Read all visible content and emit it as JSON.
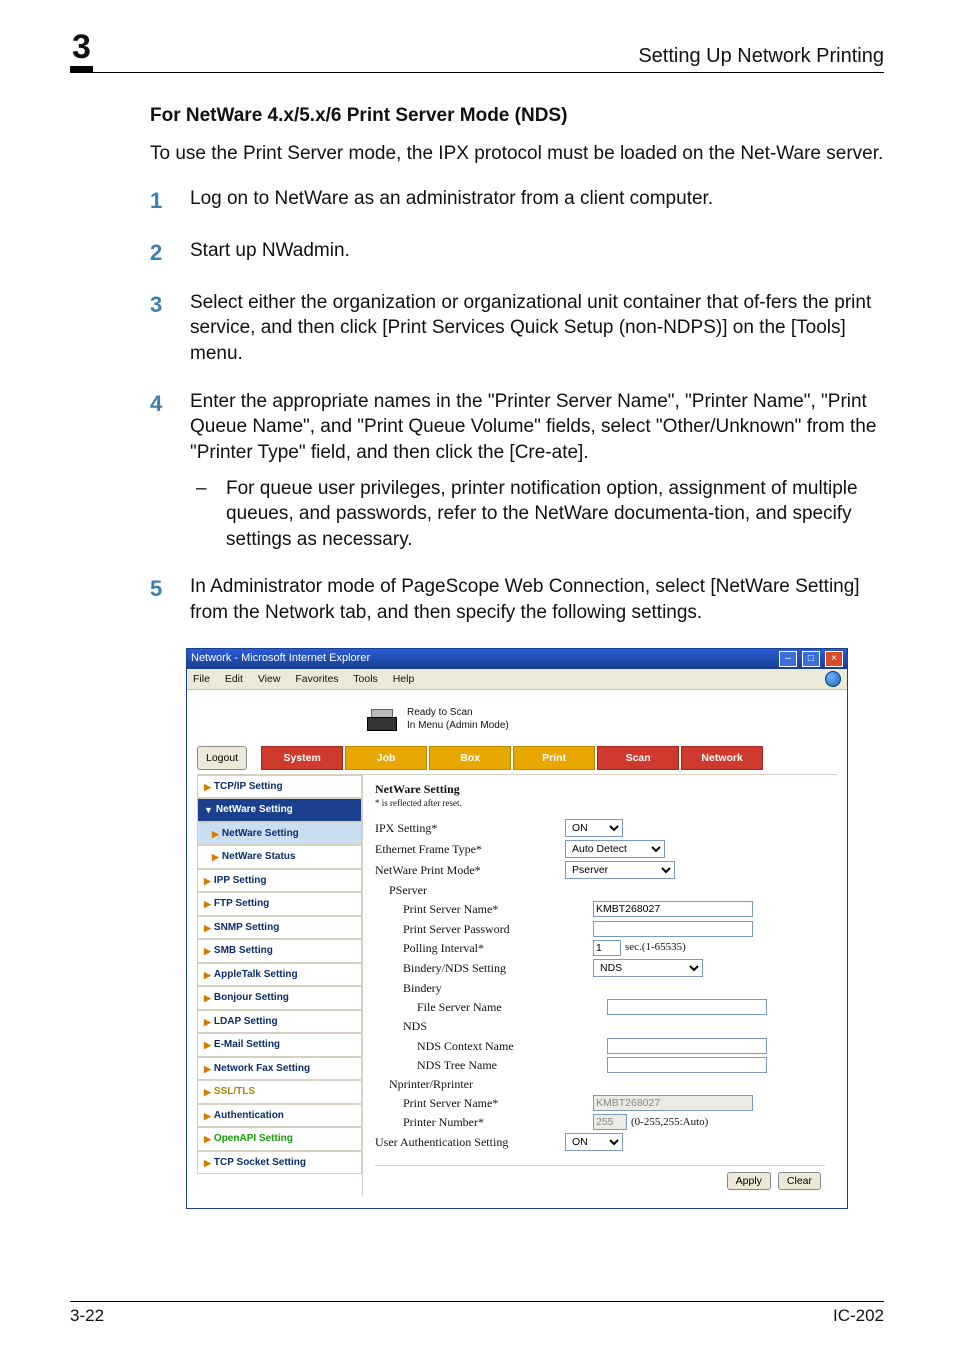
{
  "header": {
    "chapter": "3",
    "title": "Setting Up Network Printing"
  },
  "section_heading": "For NetWare 4.x/5.x/6 Print Server Mode (NDS)",
  "intro": "To use the Print Server mode, the IPX protocol must be loaded on the Net-Ware server.",
  "steps": {
    "s1": {
      "n": "1",
      "t": "Log on to NetWare as an administrator from a client computer."
    },
    "s2": {
      "n": "2",
      "t": "Start up NWadmin."
    },
    "s3": {
      "n": "3",
      "t": "Select either the organization or organizational unit container that of-fers the print service, and then click [Print Services Quick Setup (non-NDPS)] on the [Tools] menu."
    },
    "s4": {
      "n": "4",
      "t": "Enter the appropriate names in the \"Printer Server Name\", \"Printer Name\", \"Print Queue Name\", and \"Print Queue Volume\" fields, select \"Other/Unknown\" from the \"Printer Type\" field, and then click the [Cre-ate].",
      "sub_dash": "–",
      "sub": "For queue user privileges, printer notification option, assignment of multiple queues, and passwords, refer to the NetWare documenta-tion, and specify settings as necessary."
    },
    "s5": {
      "n": "5",
      "t": "In Administrator mode of PageScope Web Connection, select [NetWare Setting] from the Network tab, and then specify the following settings."
    }
  },
  "window": {
    "title": "Network - Microsoft Internet Explorer",
    "menu": {
      "file": "File",
      "edit": "Edit",
      "view": "View",
      "favorites": "Favorites",
      "tools": "Tools",
      "help": "Help"
    },
    "status": {
      "line1": "Ready to Scan",
      "line2": "In Menu (Admin Mode)"
    },
    "logout": "Logout",
    "tabs": {
      "system": "System",
      "job": "Job",
      "box": "Box",
      "print": "Print",
      "scan": "Scan",
      "network": "Network"
    },
    "sidebar": {
      "tcpip": "TCP/IP Setting",
      "group": "NetWare Setting",
      "nwsetting": "NetWare Setting",
      "nwstatus": "NetWare Status",
      "ipp": "IPP Setting",
      "ftp": "FTP Setting",
      "snmp": "SNMP Setting",
      "smb": "SMB Setting",
      "appletalk": "AppleTalk Setting",
      "bonjour": "Bonjour Setting",
      "ldap": "LDAP Setting",
      "email": "E-Mail Setting",
      "fax": "Network Fax Setting",
      "ssl": "SSL/TLS",
      "auth": "Authentication",
      "openapi": "OpenAPI Setting",
      "tcpsock": "TCP Socket Setting"
    },
    "panel": {
      "title": "NetWare Setting",
      "note": "* is reflected after reset.",
      "ipx": {
        "label": "IPX Setting*",
        "value": "ON"
      },
      "frame": {
        "label": "Ethernet Frame Type*",
        "value": "Auto Detect"
      },
      "mode": {
        "label": "NetWare Print Mode*",
        "value": "Pserver"
      },
      "pserver": "PServer",
      "psname": {
        "label": "Print Server Name*",
        "value": "KMBT268027"
      },
      "pspass": {
        "label": "Print Server Password",
        "value": ""
      },
      "poll": {
        "label": "Polling Interval*",
        "value": "1",
        "suffix": "sec.(1-65535)"
      },
      "bind": {
        "label": "Bindery/NDS Setting",
        "value": "NDS"
      },
      "bindery": "Bindery",
      "fsname": {
        "label": "File Server Name",
        "value": ""
      },
      "nds": "NDS",
      "ndsctx": {
        "label": "NDS Context Name",
        "value": ""
      },
      "ndstree": {
        "label": "NDS Tree Name",
        "value": ""
      },
      "nprinter": "Nprinter/Rprinter",
      "npsname": {
        "label": "Print Server Name*",
        "value": "KMBT268027"
      },
      "pnum": {
        "label": "Printer Number*",
        "value": "255",
        "suffix": "(0-255,255:Auto)"
      },
      "uauth": {
        "label": "User Authentication Setting",
        "value": "ON"
      },
      "apply": "Apply",
      "clear": "Clear"
    }
  },
  "footer": {
    "left": "3-22",
    "right": "IC-202"
  }
}
